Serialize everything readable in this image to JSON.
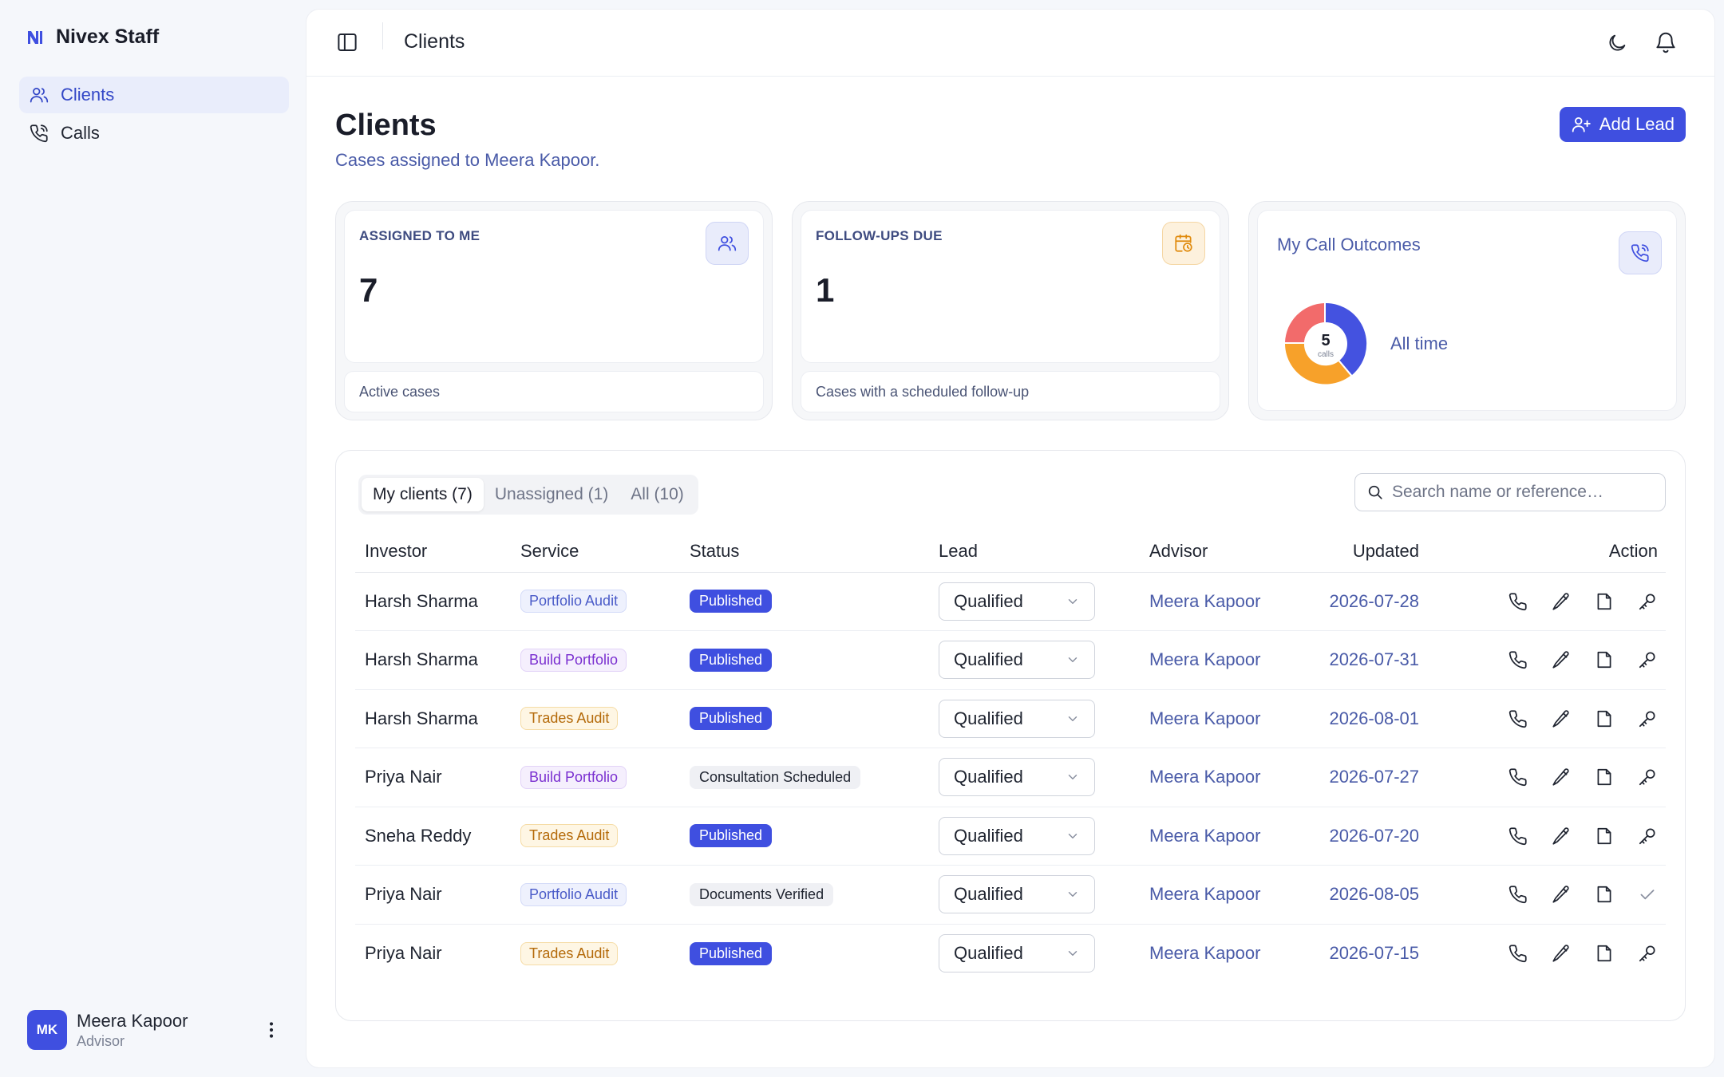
{
  "brand": {
    "name": "Nivex Staff"
  },
  "nav": {
    "items": [
      {
        "label": "Clients",
        "active": true
      },
      {
        "label": "Calls",
        "active": false
      }
    ]
  },
  "user": {
    "initials": "MK",
    "name": "Meera Kapoor",
    "role": "Advisor"
  },
  "topbar": {
    "title": "Clients"
  },
  "page": {
    "title": "Clients",
    "subtitle": "Cases assigned to Meera Kapoor.",
    "add_button": "Add Lead"
  },
  "cards": {
    "assigned": {
      "label": "ASSIGNED TO ME",
      "value": "7",
      "footer": "Active cases"
    },
    "followups": {
      "label": "FOLLOW-UPS DUE",
      "value": "1",
      "footer": "Cases with a scheduled follow-up"
    },
    "outcomes": {
      "title": "My Call Outcomes",
      "center_value": "5",
      "center_label": "calls",
      "period": "All time"
    }
  },
  "tabs": [
    {
      "label": "My clients (7)",
      "active": true
    },
    {
      "label": "Unassigned (1)",
      "active": false
    },
    {
      "label": "All (10)",
      "active": false
    }
  ],
  "search": {
    "placeholder": "Search name or reference…",
    "value": ""
  },
  "table": {
    "headers": {
      "investor": "Investor",
      "service": "Service",
      "status": "Status",
      "lead": "Lead",
      "advisor": "Advisor",
      "updated": "Updated",
      "action": "Action"
    },
    "rows": [
      {
        "investor": "Harsh Sharma",
        "service": "Portfolio Audit",
        "status": "Published",
        "lead": "Qualified",
        "advisor": "Meera Kapoor",
        "updated": "2026-07-28"
      },
      {
        "investor": "Harsh Sharma",
        "service": "Build Portfolio",
        "status": "Published",
        "lead": "Qualified",
        "advisor": "Meera Kapoor",
        "updated": "2026-07-31"
      },
      {
        "investor": "Harsh Sharma",
        "service": "Trades Audit",
        "status": "Published",
        "lead": "Qualified",
        "advisor": "Meera Kapoor",
        "updated": "2026-08-01"
      },
      {
        "investor": "Priya Nair",
        "service": "Build Portfolio",
        "status": "Consultation Scheduled",
        "lead": "Qualified",
        "advisor": "Meera Kapoor",
        "updated": "2026-07-27"
      },
      {
        "investor": "Sneha Reddy",
        "service": "Trades Audit",
        "status": "Published",
        "lead": "Qualified",
        "advisor": "Meera Kapoor",
        "updated": "2026-07-20"
      },
      {
        "investor": "Priya Nair",
        "service": "Portfolio Audit",
        "status": "Documents Verified",
        "lead": "Qualified",
        "advisor": "Meera Kapoor",
        "updated": "2026-08-05"
      },
      {
        "investor": "Priya Nair",
        "service": "Trades Audit",
        "status": "Published",
        "lead": "Qualified",
        "advisor": "Meera Kapoor",
        "updated": "2026-07-15"
      }
    ]
  },
  "colors": {
    "accent": "#3f4fe0",
    "donut_blue": "#4452e0",
    "donut_orange": "#f7a12a",
    "donut_red": "#f26b6b"
  }
}
